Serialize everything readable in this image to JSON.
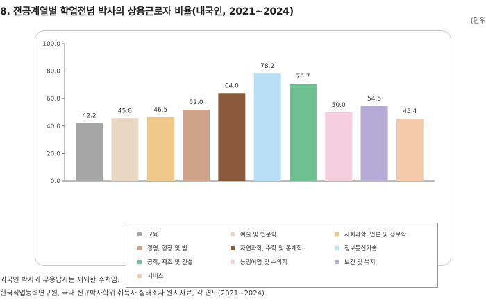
{
  "header": {
    "title": "8. 전공계열별 학업전념 박사의 상용근로자 비율(내국인, 2021~2024)",
    "unit": "(단위"
  },
  "chart_data": {
    "type": "bar",
    "title": "",
    "xlabel": "",
    "ylabel": "",
    "ylim": [
      0,
      100
    ],
    "yticks": [
      "0.0",
      "20.0",
      "40.0",
      "60.0",
      "80.0",
      "100.0"
    ],
    "grid": false,
    "legend_position": "bottom",
    "categories": [
      "교육",
      "예술 및 인문학",
      "사회과학, 언론 및 정보학",
      "경영, 행정 및 법",
      "자연과학, 수학 및 통계학",
      "정보통신기술",
      "공학, 제조 및 건설",
      "농림어업 및 수의학",
      "보건 및 복지",
      "서비스"
    ],
    "values": [
      42.2,
      45.8,
      46.5,
      52.0,
      64.0,
      78.2,
      70.7,
      50.0,
      54.5,
      45.4
    ],
    "value_labels": [
      "42.2",
      "45.8",
      "46.5",
      "52.0",
      "64.0",
      "78.2",
      "70.7",
      "50.0",
      "54.5",
      "45.4"
    ],
    "colors": [
      "#a6a6a6",
      "#ead7c3",
      "#f0c88a",
      "#cea388",
      "#8b5a3c",
      "#b7def4",
      "#6ebf91",
      "#f5cedd",
      "#b6abd4",
      "#f6c8aa"
    ]
  },
  "notes": [
    "외국인 박사와 무응답자는 제외한 수치임.",
    "한국직업능력연구원, 국내 신규박사학위 취득자 실태조사 원시자료, 각 연도(2021~2024)."
  ]
}
